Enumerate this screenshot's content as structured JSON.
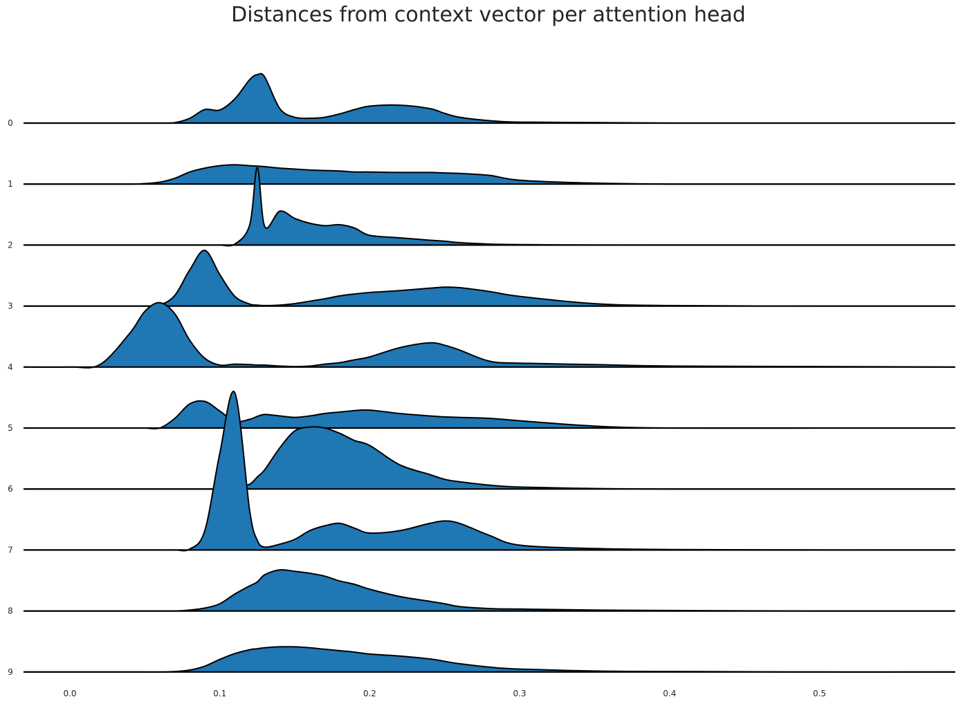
{
  "chart_data": {
    "type": "area",
    "subtype": "ridgeline-kde",
    "title": "Distances from context vector per attention head",
    "xlabel": "",
    "ylabel": "",
    "xlim": [
      -0.032,
      0.59
    ],
    "x_ticks": [
      "0.0",
      "0.1",
      "0.2",
      "0.3",
      "0.4",
      "0.5"
    ],
    "grid": false,
    "legend": "none",
    "fill_color": "#1f77b4",
    "line_color": "#000000",
    "x": [
      0.0,
      0.02,
      0.04,
      0.05,
      0.06,
      0.07,
      0.08,
      0.09,
      0.1,
      0.11,
      0.12,
      0.125,
      0.13,
      0.14,
      0.15,
      0.16,
      0.17,
      0.18,
      0.19,
      0.2,
      0.22,
      0.24,
      0.25,
      0.26,
      0.28,
      0.3,
      0.35,
      0.4,
      0.5,
      0.58
    ],
    "series": [
      {
        "name": "0",
        "values": [
          0,
          0,
          0,
          0,
          0,
          0.01,
          0.1,
          0.28,
          0.27,
          0.5,
          0.9,
          1.0,
          0.95,
          0.3,
          0.12,
          0.1,
          0.12,
          0.19,
          0.28,
          0.35,
          0.37,
          0.3,
          0.2,
          0.12,
          0.05,
          0.02,
          0.01,
          0,
          0,
          0
        ]
      },
      {
        "name": "1",
        "values": [
          0,
          0,
          0,
          0.01,
          0.04,
          0.12,
          0.25,
          0.33,
          0.38,
          0.4,
          0.38,
          0.37,
          0.36,
          0.33,
          0.31,
          0.29,
          0.28,
          0.27,
          0.25,
          0.25,
          0.24,
          0.24,
          0.23,
          0.22,
          0.18,
          0.08,
          0.02,
          0,
          0,
          0
        ]
      },
      {
        "name": "2",
        "values": [
          0,
          0,
          0,
          0,
          0,
          0,
          0,
          0,
          0,
          0.02,
          0.42,
          1.6,
          0.38,
          0.7,
          0.55,
          0.45,
          0.4,
          0.42,
          0.35,
          0.2,
          0.15,
          0.1,
          0.08,
          0.05,
          0.02,
          0.01,
          0,
          0,
          0,
          0
        ]
      },
      {
        "name": "3",
        "values": [
          0,
          0,
          0,
          0,
          0.02,
          0.22,
          0.75,
          1.15,
          0.65,
          0.2,
          0.04,
          0.02,
          0.01,
          0.02,
          0.05,
          0.1,
          0.15,
          0.21,
          0.25,
          0.28,
          0.32,
          0.37,
          0.39,
          0.38,
          0.3,
          0.2,
          0.05,
          0.01,
          0,
          0
        ]
      },
      {
        "name": "4",
        "values": [
          0,
          0.05,
          0.7,
          1.15,
          1.33,
          1.1,
          0.55,
          0.18,
          0.04,
          0.06,
          0.05,
          0.04,
          0.04,
          0.02,
          0.01,
          0.02,
          0.06,
          0.09,
          0.15,
          0.21,
          0.4,
          0.5,
          0.45,
          0.35,
          0.12,
          0.08,
          0.05,
          0.02,
          0.01,
          0
        ]
      },
      {
        "name": "5",
        "values": [
          0,
          0,
          0,
          0,
          0,
          0.2,
          0.5,
          0.55,
          0.35,
          0.14,
          0.18,
          0.24,
          0.28,
          0.25,
          0.22,
          0.25,
          0.3,
          0.33,
          0.36,
          0.37,
          0.3,
          0.25,
          0.23,
          0.22,
          0.2,
          0.15,
          0.04,
          0,
          0,
          0
        ]
      },
      {
        "name": "6",
        "values": [
          0,
          0,
          0,
          0,
          0,
          0,
          0,
          0,
          0,
          0.01,
          0.1,
          0.25,
          0.4,
          0.85,
          1.2,
          1.28,
          1.26,
          1.15,
          1.0,
          0.9,
          0.5,
          0.3,
          0.2,
          0.15,
          0.08,
          0.04,
          0.01,
          0,
          0,
          0
        ]
      },
      {
        "name": "7",
        "values": [
          0,
          0,
          0,
          0,
          0,
          0,
          0.02,
          0.4,
          2.0,
          3.25,
          0.8,
          0.2,
          0.06,
          0.12,
          0.22,
          0.4,
          0.5,
          0.55,
          0.45,
          0.35,
          0.4,
          0.55,
          0.6,
          0.55,
          0.3,
          0.1,
          0.03,
          0.01,
          0,
          0
        ]
      },
      {
        "name": "8",
        "values": [
          0,
          0,
          0,
          0,
          0,
          0,
          0.02,
          0.06,
          0.15,
          0.35,
          0.52,
          0.6,
          0.75,
          0.85,
          0.82,
          0.78,
          0.72,
          0.62,
          0.55,
          0.45,
          0.3,
          0.2,
          0.15,
          0.09,
          0.05,
          0.04,
          0.02,
          0.01,
          0,
          0
        ]
      },
      {
        "name": "9",
        "values": [
          0,
          0,
          0,
          0,
          0,
          0.01,
          0.04,
          0.12,
          0.26,
          0.38,
          0.46,
          0.48,
          0.5,
          0.52,
          0.52,
          0.5,
          0.47,
          0.44,
          0.41,
          0.37,
          0.33,
          0.27,
          0.22,
          0.17,
          0.1,
          0.06,
          0.02,
          0.01,
          0,
          0
        ]
      }
    ]
  }
}
